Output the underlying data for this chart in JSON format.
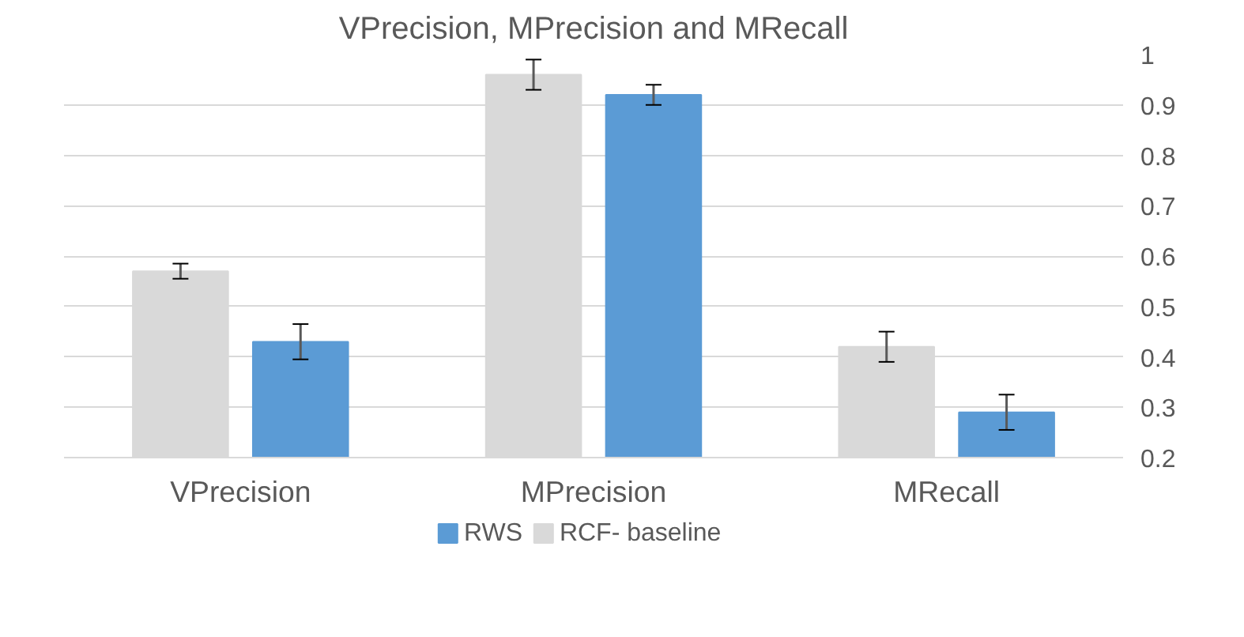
{
  "chart_data": {
    "type": "bar",
    "title": "VPrecision, MPrecision and MRecall",
    "categories": [
      "VPrecision",
      "MPrecision",
      "MRecall"
    ],
    "series": [
      {
        "name": "RCF- baseline",
        "color": "#d9d9d9",
        "values": [
          0.57,
          0.96,
          0.42
        ],
        "errors": [
          0.015,
          0.03,
          0.03
        ]
      },
      {
        "name": "RWS",
        "color": "#5b9bd5",
        "values": [
          0.43,
          0.92,
          0.29
        ],
        "errors": [
          0.035,
          0.02,
          0.035
        ]
      }
    ],
    "ylim": [
      0.2,
      1
    ],
    "yticks": [
      0.2,
      0.3,
      0.4,
      0.5,
      0.6,
      0.7,
      0.8,
      0.9,
      1
    ],
    "grid": "y",
    "legend": "bottom"
  }
}
